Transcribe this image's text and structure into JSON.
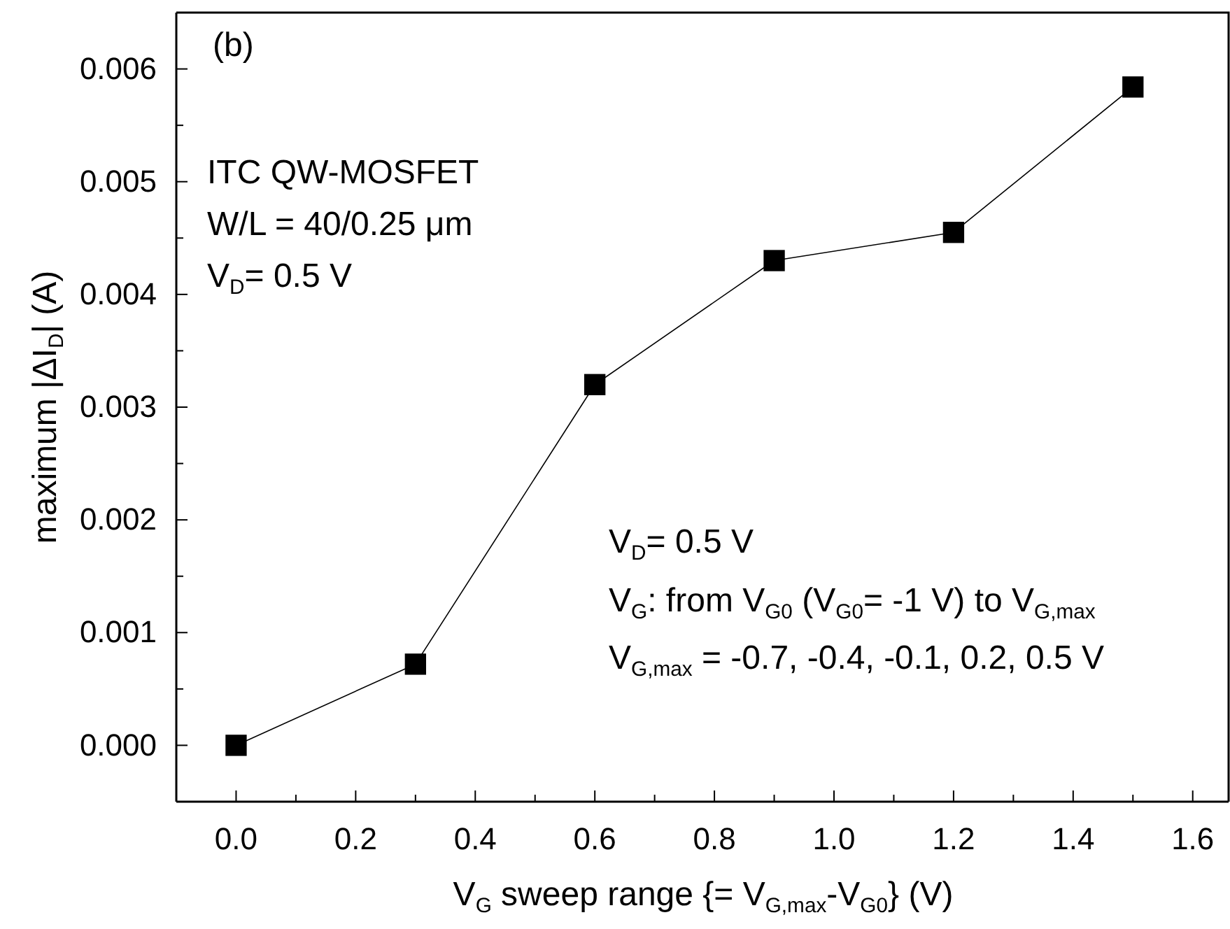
{
  "chart_data": {
    "type": "line",
    "xlabel": "V$_{G}$ sweep range {= V$_{G,max}$-V$_{G0}$} (V)",
    "ylabel": "maximum |ΔI$_{D}$| (A)",
    "x": [
      0,
      0.3,
      0.6,
      0.9,
      1.2,
      1.5
    ],
    "series": [
      {
        "color": "#000000",
        "values": [
          0,
          0.00072,
          0.0032,
          0.0043,
          0.00455,
          0.00584
        ]
      }
    ],
    "marker": "square",
    "line_style": "solid",
    "grid": false,
    "xlim": [
      -0.1,
      1.66
    ],
    "ylim": [
      -0.0005,
      0.0065
    ],
    "xticks": [
      {
        "value": -0.1,
        "label": null
      },
      {
        "value": 0,
        "label": "0.0"
      },
      {
        "value": 0.1,
        "label": null
      },
      {
        "value": 0.2,
        "label": "0.2"
      },
      {
        "value": 0.3,
        "label": null
      },
      {
        "value": 0.4,
        "label": "0.4"
      },
      {
        "value": 0.5,
        "label": null
      },
      {
        "value": 0.6,
        "label": "0.6"
      },
      {
        "value": 0.7,
        "label": null
      },
      {
        "value": 0.8,
        "label": "0.8"
      },
      {
        "value": 0.9,
        "label": null
      },
      {
        "value": 1,
        "label": "1.0"
      },
      {
        "value": 1.1,
        "label": null
      },
      {
        "value": 1.2,
        "label": "1.2"
      },
      {
        "value": 1.3,
        "label": null
      },
      {
        "value": 1.4,
        "label": "1.4"
      },
      {
        "value": 1.5,
        "label": null
      },
      {
        "value": 1.6,
        "label": "1.6"
      }
    ],
    "yticks": [
      {
        "value": -0.0005,
        "label": null
      },
      {
        "value": 0,
        "label": "0.000"
      },
      {
        "value": 0.0005,
        "label": null
      },
      {
        "value": 0.001,
        "label": "0.001"
      },
      {
        "value": 0.0015,
        "label": null
      },
      {
        "value": 0.002,
        "label": "0.002"
      },
      {
        "value": 0.0025,
        "label": null
      },
      {
        "value": 0.003,
        "label": "0.003"
      },
      {
        "value": 0.0035,
        "label": null
      },
      {
        "value": 0.004,
        "label": "0.004"
      },
      {
        "value": 0.0045,
        "label": null
      },
      {
        "value": 0.005,
        "label": "0.005"
      },
      {
        "value": 0.0055,
        "label": null
      },
      {
        "value": 0.006,
        "label": "0.006"
      }
    ],
    "annotations": [
      "(b)",
      "ITC QW-MOSFET",
      "W/L = 40/0.25 μm",
      "V$_{D}$= 0.5 V",
      "V$_{D}$= 0.5 V",
      "V$_{G}$: from V$_{G0}$ (V$_{G0}$= -1 V) to V$_{G,max}$",
      "V$_{G,max}$ = -0.7, -0.4, -0.1, 0.2, 0.5 V"
    ]
  }
}
